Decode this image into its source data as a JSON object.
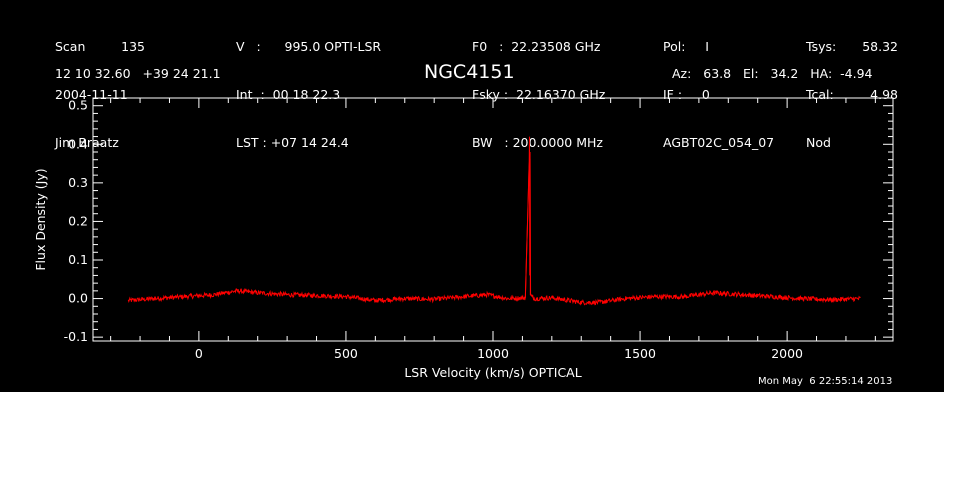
{
  "header": {
    "col1": [
      "Scan         135",
      "2004-11-11",
      "Jim Braatz"
    ],
    "col2": [
      "V   :      995.0 OPTI-LSR",
      "Int  :  00 18 22.3",
      "LST : +07 14 24.4"
    ],
    "col3": [
      "F0   :  22.23508 GHz",
      "Fsky :  22.16370 GHz",
      "BW   : 200.0000 MHz"
    ],
    "col4": [
      "Pol:     I",
      "IF :     0",
      "AGBT02C_054_07"
    ],
    "col5": [
      "Tsys:",
      "Tcal:",
      "Nod"
    ],
    "col6": [
      "58.32",
      "4.98",
      ""
    ],
    "coords": "12 10 32.60   +39 24 21.1",
    "source": "NGC4151",
    "azelha": "Az:   63.8   El:   34.2   HA:  -4.94",
    "timestamp": "Mon May  6 22:55:14 2013"
  },
  "colors": {
    "background": "#000000",
    "foreground": "#ffffff",
    "series": "#ff0000"
  },
  "chart_data": {
    "type": "line",
    "title": "NGC4151",
    "xlabel": "LSR Velocity (km/s) OPTICAL",
    "ylabel": "Flux Density (Jy)",
    "xlim": [
      -360,
      2360
    ],
    "ylim": [
      -0.11,
      0.52
    ],
    "xticks": [
      0,
      500,
      1000,
      1500,
      2000
    ],
    "yticks": [
      -0.1,
      0.0,
      0.1,
      0.2,
      0.3,
      0.4,
      0.5
    ],
    "ytick_labels": [
      "-0.1",
      "0.0",
      "0.1",
      "0.2",
      "0.3",
      "0.4",
      "0.5"
    ],
    "grid": false,
    "series": [
      {
        "x": [
          -240,
          -150,
          -50,
          50,
          130,
          200,
          300,
          400,
          500,
          600,
          700,
          800,
          900,
          980,
          1050,
          1110,
          1123,
          1124,
          1125,
          1126,
          1127,
          1140,
          1200,
          1300,
          1360,
          1450,
          1550,
          1650,
          1750,
          1850,
          1950,
          2050,
          2150,
          2250
        ],
        "y": [
          -0.005,
          0.0,
          0.005,
          0.01,
          0.02,
          0.015,
          0.01,
          0.008,
          0.005,
          -0.005,
          0.0,
          -0.002,
          0.005,
          0.01,
          0.0,
          0.002,
          0.35,
          0.42,
          0.06,
          0.38,
          0.01,
          0.0,
          0.002,
          -0.01,
          -0.01,
          0.0,
          0.005,
          0.005,
          0.015,
          0.01,
          0.005,
          0.0,
          -0.003,
          0.0
        ],
        "noise": 0.006
      }
    ]
  }
}
